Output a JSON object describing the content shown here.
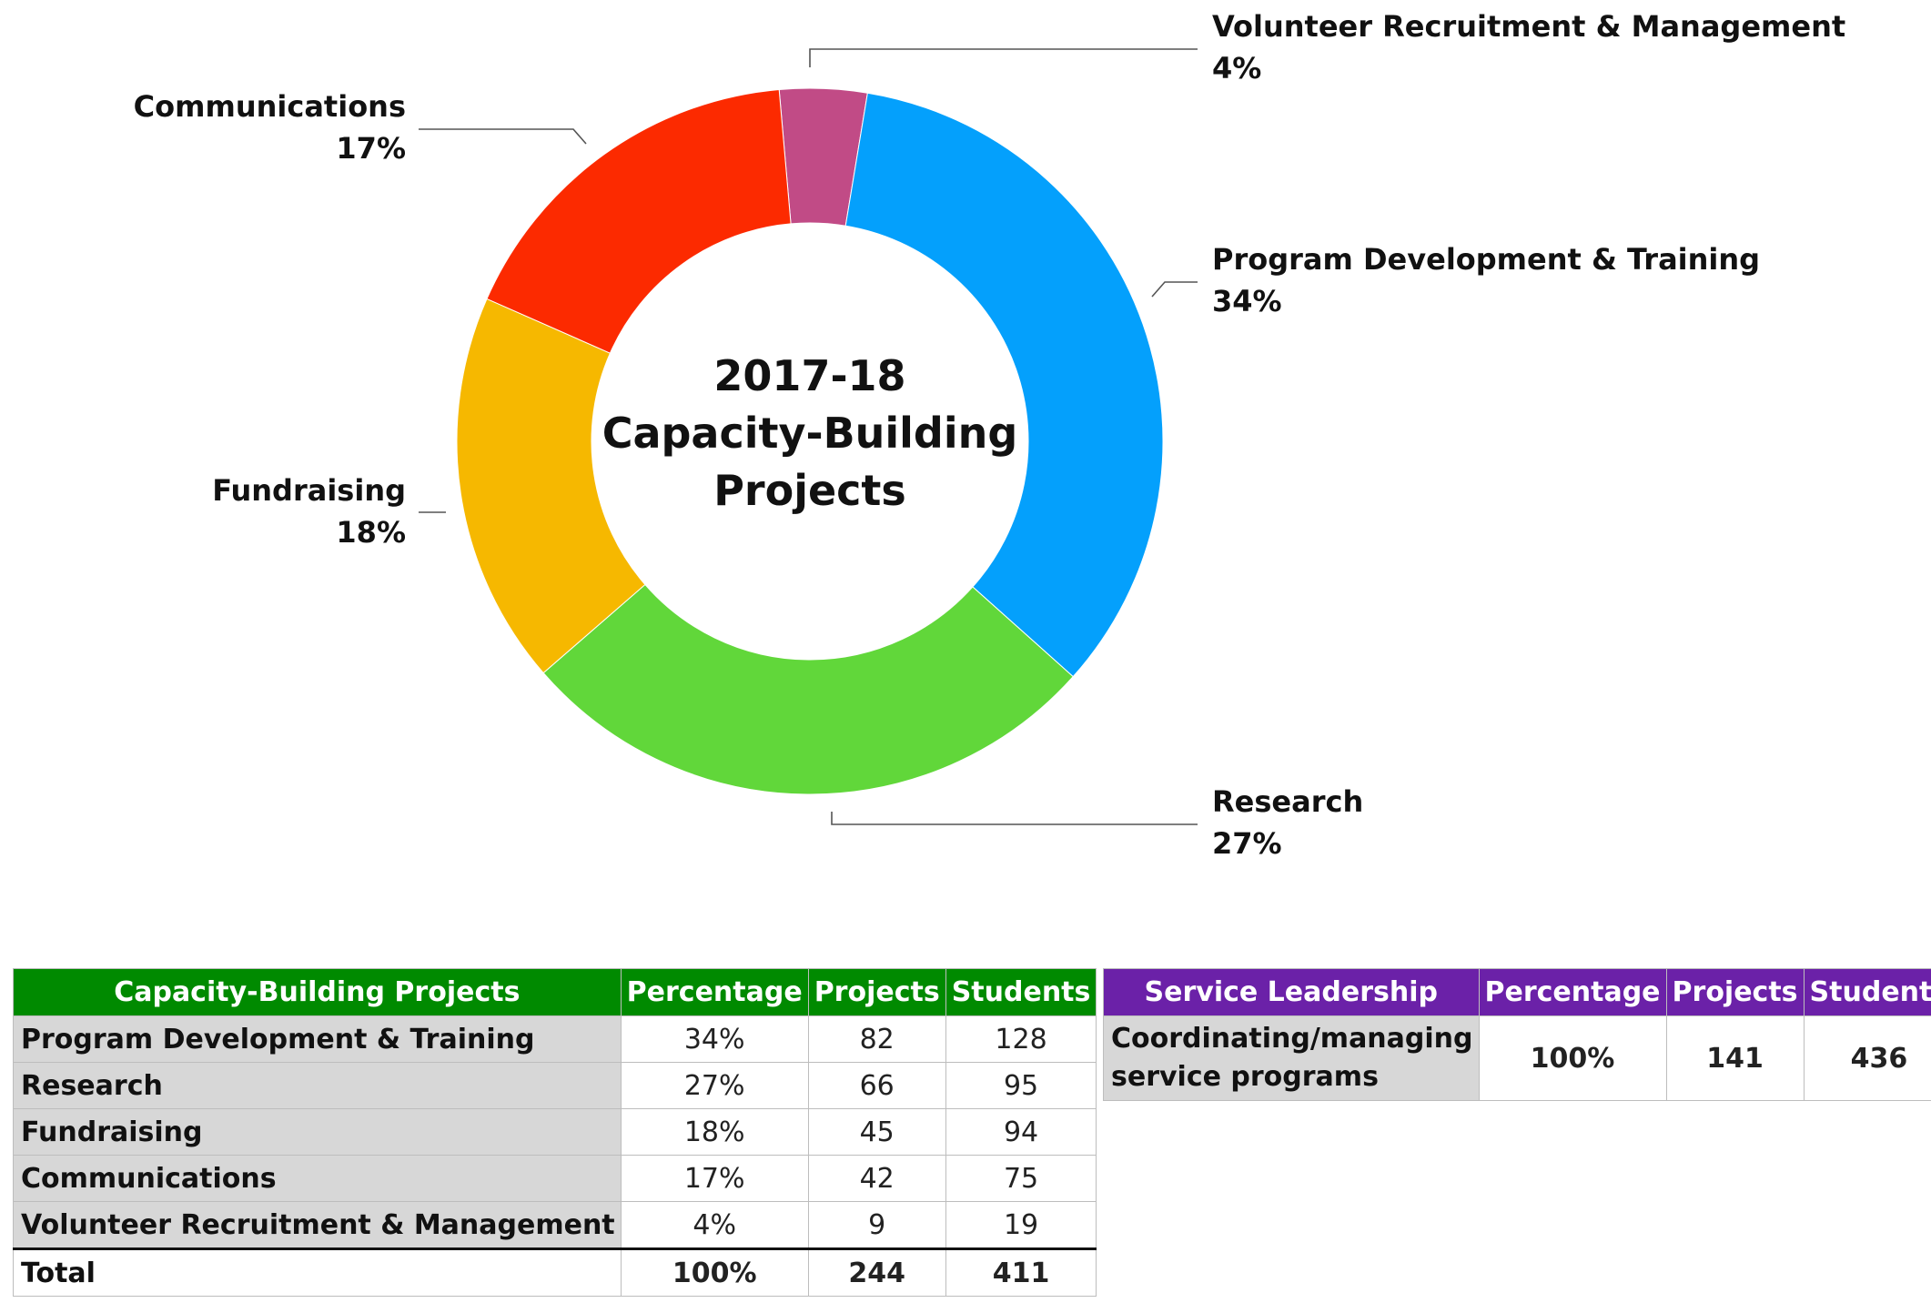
{
  "chart_data": {
    "type": "pie",
    "variant": "donut",
    "title": [
      "2017-18",
      "Capacity-Building",
      "Projects"
    ],
    "categories": [
      "Volunteer Recruitment & Management",
      "Program Development & Training",
      "Research",
      "Fundraising",
      "Communications"
    ],
    "values": [
      4,
      34,
      27,
      18,
      17
    ],
    "value_labels": [
      "4%",
      "34%",
      "27%",
      "18%",
      "17%"
    ],
    "colors": [
      "#C14B86",
      "#04A0FC",
      "#61D73A",
      "#F6B800",
      "#FC2A00"
    ],
    "start_angle_deg": -5,
    "direction": "clockwise",
    "legend": "none"
  },
  "capacity_table": {
    "headers": [
      "Capacity-Building Projects",
      "Percentage",
      "Projects",
      "Students"
    ],
    "header_color": "#008A00",
    "rows": [
      {
        "label": "Program Development & Training",
        "percentage": "34%",
        "projects": "82",
        "students": "128"
      },
      {
        "label": "Research",
        "percentage": "27%",
        "projects": "66",
        "students": "95"
      },
      {
        "label": "Fundraising",
        "percentage": "18%",
        "projects": "45",
        "students": "94"
      },
      {
        "label": "Communications",
        "percentage": "17%",
        "projects": "42",
        "students": "75"
      },
      {
        "label": "Volunteer Recruitment & Management",
        "percentage": "4%",
        "projects": "9",
        "students": "19"
      }
    ],
    "total": {
      "label": "Total",
      "percentage": "100%",
      "projects": "244",
      "students": "411"
    }
  },
  "service_table": {
    "headers": [
      "Service Leadership",
      "Percentage",
      "Projects",
      "Students"
    ],
    "header_color": "#6B21A8",
    "rows": [
      {
        "label": "Coordinating/managing service programs",
        "percentage": "100%",
        "projects": "141",
        "students": "436"
      }
    ]
  }
}
